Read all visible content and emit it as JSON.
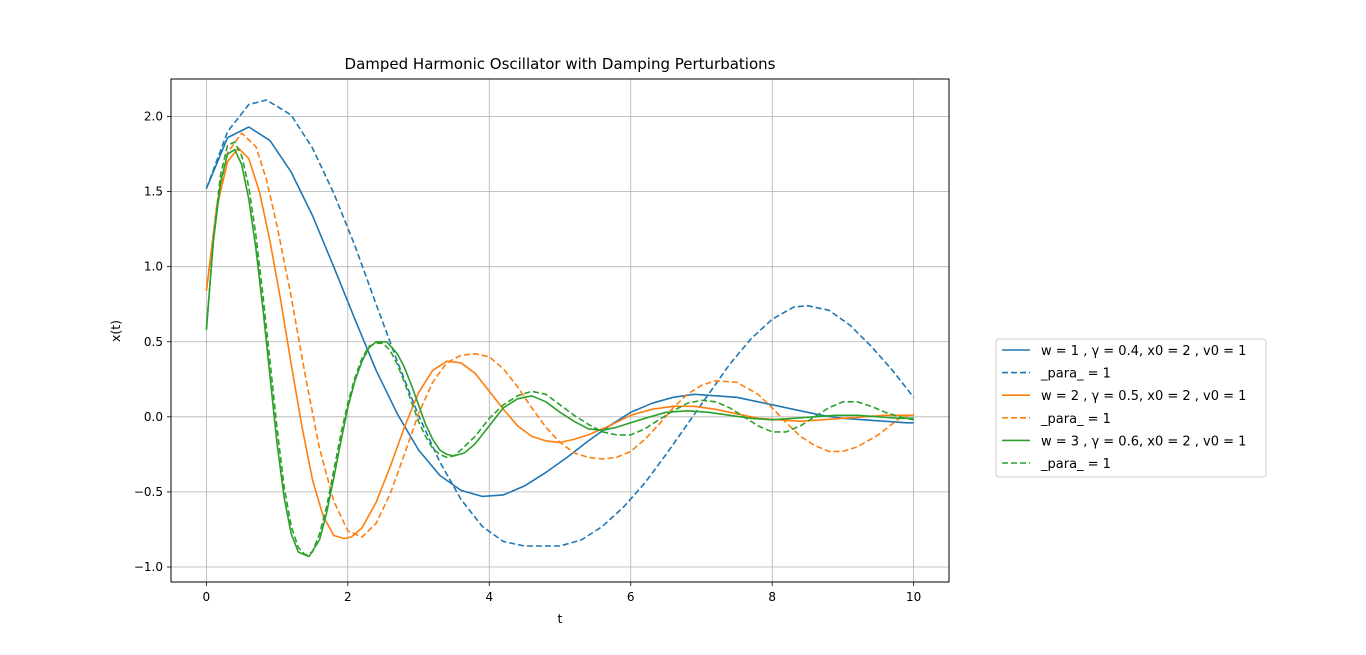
{
  "chart_data": {
    "type": "line",
    "title": "Damped Harmonic Oscillator with Damping Perturbations",
    "xlabel": "t",
    "ylabel": "x(t)",
    "xlim": [
      -0.5,
      10.5
    ],
    "ylim": [
      -1.1,
      2.25
    ],
    "xticks": [
      0,
      2,
      4,
      6,
      8,
      10
    ],
    "yticks": [
      -1.0,
      -0.5,
      0.0,
      0.5,
      1.0,
      1.5,
      2.0
    ],
    "grid": true,
    "legend_position": "outside-right",
    "series": [
      {
        "name": "w = 1 , γ = 0.4, x0 = 2 , v0 = 1",
        "color": "#1f77b4",
        "style": "solid",
        "x": [
          0,
          0.3,
          0.6,
          0.9,
          1.2,
          1.5,
          1.8,
          2.1,
          2.4,
          2.7,
          3.0,
          3.3,
          3.6,
          3.9,
          4.2,
          4.5,
          4.8,
          5.1,
          5.4,
          5.7,
          6.0,
          6.3,
          6.6,
          6.9,
          7.2,
          7.5,
          7.8,
          8.1,
          8.4,
          8.7,
          9.0,
          9.3,
          9.6,
          9.9,
          10.0
        ],
        "y": [
          1.52,
          1.86,
          1.93,
          1.84,
          1.63,
          1.34,
          1.0,
          0.65,
          0.31,
          0.02,
          -0.22,
          -0.39,
          -0.49,
          -0.53,
          -0.52,
          -0.46,
          -0.37,
          -0.27,
          -0.16,
          -0.06,
          0.03,
          0.09,
          0.13,
          0.15,
          0.14,
          0.13,
          0.1,
          0.07,
          0.04,
          0.01,
          -0.01,
          -0.02,
          -0.03,
          -0.04,
          -0.04
        ]
      },
      {
        "name": "_para_ = 1",
        "color": "#1f77b4",
        "style": "dashed",
        "x": [
          0,
          0.3,
          0.6,
          0.85,
          1.2,
          1.5,
          1.8,
          2.1,
          2.4,
          2.7,
          3.0,
          3.3,
          3.6,
          3.9,
          4.2,
          4.5,
          4.8,
          5.0,
          5.3,
          5.6,
          5.9,
          6.2,
          6.5,
          6.8,
          7.1,
          7.4,
          7.7,
          8.0,
          8.3,
          8.5,
          8.8,
          9.1,
          9.4,
          9.7,
          10.0
        ],
        "y": [
          1.52,
          1.9,
          2.08,
          2.11,
          2.01,
          1.79,
          1.49,
          1.14,
          0.75,
          0.37,
          0.01,
          -0.3,
          -0.55,
          -0.73,
          -0.83,
          -0.86,
          -0.86,
          -0.86,
          -0.82,
          -0.73,
          -0.6,
          -0.44,
          -0.25,
          -0.05,
          0.15,
          0.35,
          0.52,
          0.65,
          0.73,
          0.74,
          0.71,
          0.61,
          0.47,
          0.31,
          0.13
        ]
      },
      {
        "name": "w = 2 , γ = 0.5, x0 = 2 , v0 = 1",
        "color": "#ff7f0e",
        "style": "solid",
        "x": [
          0,
          0.15,
          0.3,
          0.45,
          0.6,
          0.75,
          0.9,
          1.05,
          1.2,
          1.35,
          1.5,
          1.65,
          1.8,
          1.95,
          2.05,
          2.2,
          2.4,
          2.6,
          2.8,
          3.0,
          3.2,
          3.4,
          3.6,
          3.8,
          4.0,
          4.2,
          4.4,
          4.6,
          4.8,
          5.0,
          5.2,
          5.4,
          5.7,
          6.0,
          6.3,
          6.6,
          6.9,
          7.2,
          7.5,
          7.8,
          8.1,
          8.4,
          8.7,
          9.0,
          9.3,
          9.6,
          10.0
        ],
        "y": [
          0.84,
          1.4,
          1.7,
          1.79,
          1.72,
          1.5,
          1.17,
          0.78,
          0.35,
          -0.06,
          -0.42,
          -0.66,
          -0.79,
          -0.81,
          -0.8,
          -0.74,
          -0.57,
          -0.33,
          -0.07,
          0.16,
          0.31,
          0.37,
          0.36,
          0.29,
          0.17,
          0.05,
          -0.06,
          -0.13,
          -0.16,
          -0.17,
          -0.15,
          -0.12,
          -0.06,
          0.01,
          0.05,
          0.07,
          0.07,
          0.05,
          0.02,
          -0.01,
          -0.02,
          -0.03,
          -0.02,
          -0.01,
          0.0,
          0.01,
          0.01
        ]
      },
      {
        "name": "_para_ = 1",
        "color": "#ff7f0e",
        "style": "dashed",
        "x": [
          0,
          0.15,
          0.3,
          0.5,
          0.7,
          0.85,
          1.0,
          1.2,
          1.4,
          1.6,
          1.8,
          2.0,
          2.2,
          2.4,
          2.6,
          2.8,
          3.0,
          3.2,
          3.4,
          3.6,
          3.8,
          4.0,
          4.2,
          4.4,
          4.6,
          4.8,
          5.0,
          5.2,
          5.4,
          5.6,
          5.8,
          6.0,
          6.2,
          6.4,
          6.6,
          6.8,
          7.0,
          7.2,
          7.5,
          7.8,
          8.0,
          8.2,
          8.4,
          8.6,
          8.8,
          9.0,
          9.2,
          9.5,
          9.8,
          10.0
        ],
        "y": [
          0.84,
          1.42,
          1.76,
          1.89,
          1.8,
          1.58,
          1.27,
          0.8,
          0.27,
          -0.21,
          -0.56,
          -0.76,
          -0.8,
          -0.71,
          -0.51,
          -0.25,
          0.02,
          0.23,
          0.36,
          0.41,
          0.42,
          0.4,
          0.32,
          0.2,
          0.06,
          -0.07,
          -0.17,
          -0.24,
          -0.27,
          -0.28,
          -0.27,
          -0.23,
          -0.15,
          -0.05,
          0.06,
          0.15,
          0.21,
          0.24,
          0.23,
          0.15,
          0.06,
          -0.04,
          -0.13,
          -0.19,
          -0.23,
          -0.23,
          -0.2,
          -0.12,
          -0.01,
          0.02
        ]
      },
      {
        "name": "w = 3 , γ = 0.6, x0 = 2 , v0 = 1",
        "color": "#2ca02c",
        "style": "solid",
        "x": [
          0,
          0.1,
          0.2,
          0.3,
          0.4,
          0.5,
          0.6,
          0.7,
          0.8,
          0.9,
          1.0,
          1.1,
          1.2,
          1.3,
          1.45,
          1.6,
          1.7,
          1.8,
          1.9,
          2.0,
          2.1,
          2.2,
          2.3,
          2.4,
          2.55,
          2.7,
          2.8,
          2.9,
          3.0,
          3.1,
          3.2,
          3.3,
          3.4,
          3.5,
          3.65,
          3.8,
          4.0,
          4.2,
          4.4,
          4.6,
          4.8,
          5.0,
          5.2,
          5.4,
          5.6,
          5.8,
          6.0,
          6.2,
          6.5,
          6.8,
          7.1,
          7.4,
          7.7,
          8.0,
          8.3,
          8.6,
          8.9,
          9.2,
          9.5,
          9.8,
          10.0
        ],
        "y": [
          0.58,
          1.17,
          1.56,
          1.75,
          1.78,
          1.68,
          1.45,
          1.12,
          0.72,
          0.27,
          -0.18,
          -0.54,
          -0.78,
          -0.9,
          -0.93,
          -0.82,
          -0.64,
          -0.41,
          -0.17,
          0.06,
          0.24,
          0.37,
          0.46,
          0.5,
          0.5,
          0.42,
          0.33,
          0.21,
          0.08,
          -0.05,
          -0.15,
          -0.22,
          -0.25,
          -0.26,
          -0.24,
          -0.18,
          -0.06,
          0.06,
          0.12,
          0.14,
          0.1,
          0.03,
          -0.03,
          -0.08,
          -0.09,
          -0.07,
          -0.04,
          -0.01,
          0.03,
          0.04,
          0.03,
          0.01,
          -0.01,
          -0.02,
          -0.01,
          0.0,
          0.01,
          0.01,
          0.0,
          -0.01,
          -0.01
        ]
      },
      {
        "name": "_para_ = 1",
        "color": "#2ca02c",
        "style": "dashed",
        "x": [
          0,
          0.1,
          0.2,
          0.3,
          0.4,
          0.5,
          0.6,
          0.7,
          0.8,
          0.9,
          1.0,
          1.1,
          1.2,
          1.3,
          1.4,
          1.5,
          1.6,
          1.7,
          1.8,
          1.9,
          2.0,
          2.1,
          2.2,
          2.3,
          2.4,
          2.5,
          2.6,
          2.7,
          2.8,
          2.9,
          3.0,
          3.1,
          3.2,
          3.3,
          3.4,
          3.5,
          3.6,
          3.8,
          4.0,
          4.2,
          4.4,
          4.6,
          4.8,
          5.0,
          5.2,
          5.4,
          5.6,
          5.8,
          6.0,
          6.2,
          6.4,
          6.6,
          6.8,
          7.0,
          7.2,
          7.4,
          7.6,
          7.8,
          8.0,
          8.2,
          8.4,
          8.6,
          8.8,
          9.0,
          9.2,
          9.4,
          9.6,
          9.8,
          10.0
        ],
        "y": [
          0.58,
          1.19,
          1.61,
          1.81,
          1.83,
          1.74,
          1.53,
          1.21,
          0.81,
          0.37,
          -0.08,
          -0.47,
          -0.73,
          -0.87,
          -0.92,
          -0.9,
          -0.78,
          -0.6,
          -0.36,
          -0.12,
          0.09,
          0.26,
          0.39,
          0.47,
          0.49,
          0.49,
          0.44,
          0.35,
          0.23,
          0.1,
          -0.03,
          -0.13,
          -0.21,
          -0.25,
          -0.27,
          -0.26,
          -0.22,
          -0.13,
          -0.01,
          0.08,
          0.14,
          0.17,
          0.15,
          0.08,
          0.01,
          -0.05,
          -0.1,
          -0.12,
          -0.12,
          -0.08,
          -0.02,
          0.04,
          0.09,
          0.11,
          0.1,
          0.06,
          0.0,
          -0.06,
          -0.1,
          -0.1,
          -0.06,
          0.0,
          0.06,
          0.1,
          0.1,
          0.07,
          0.03,
          0.0,
          -0.02
        ]
      }
    ]
  }
}
